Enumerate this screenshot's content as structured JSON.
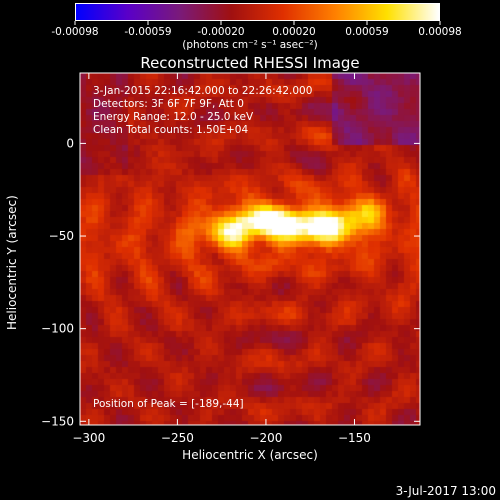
{
  "figure": {
    "title": "Reconstructed RHESSI Image",
    "info_lines": [
      "3-Jan-2015 22:16:42.000 to 22:26:42.000",
      "Detectors: 3F 6F 7F 9F, Att 0",
      "Energy Range: 12.0 - 25.0 keV",
      "Clean     Total counts: 1.50E+04"
    ],
    "peak_label": "Position of Peak = [-189,-44]",
    "footer_timestamp": "3-Jul-2017 13:00"
  },
  "colorbar": {
    "tick_labels": [
      "-0.00098",
      "-0.00059",
      "-0.00020",
      "0.00020",
      "0.00059",
      "0.00098"
    ],
    "unit_label": "(photons cm⁻² s⁻¹ asec⁻²)",
    "colors": [
      "#0000ff",
      "#5a00c8",
      "#7a1a7a",
      "#a01010",
      "#e03000",
      "#ff8000",
      "#ffe000",
      "#ffffff"
    ]
  },
  "chart_data": {
    "type": "heatmap",
    "title": "Reconstructed RHESSI Image",
    "xlabel": "Heliocentric X (arcsec)",
    "ylabel": "Heliocentric Y (arcsec)",
    "xlim": [
      -305,
      -113
    ],
    "ylim": [
      -152,
      38
    ],
    "x_ticks": [
      -300,
      -250,
      -200,
      -150
    ],
    "y_ticks": [
      0,
      -50,
      -100,
      -150
    ],
    "zlim": [
      -0.00098,
      0.00098
    ],
    "peak": {
      "x": -189,
      "y": -44
    },
    "sources": [
      {
        "x": -189,
        "y": -44,
        "amp": 1.0
      },
      {
        "x": -165,
        "y": -46,
        "amp": 0.92
      },
      {
        "x": -222,
        "y": -48,
        "amp": 0.75
      },
      {
        "x": -205,
        "y": -40,
        "amp": 0.6
      },
      {
        "x": -148,
        "y": -38,
        "amp": 0.55
      }
    ]
  }
}
